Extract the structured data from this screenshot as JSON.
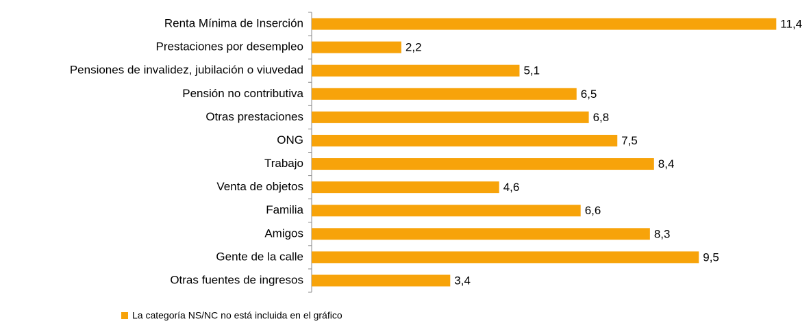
{
  "chart_data": {
    "type": "barh",
    "categories": [
      "Renta Mínima de Inserción",
      "Prestaciones por desempleo",
      "Pensiones de invalidez, jubilación o viuvedad",
      "Pensión no contributiva",
      "Otras prestaciones",
      "ONG",
      "Trabajo",
      "Venta de objetos",
      "Familia",
      "Amigos",
      "Gente de la calle",
      "Otras fuentes de ingresos"
    ],
    "values": [
      11.4,
      2.2,
      5.1,
      6.5,
      6.8,
      7.5,
      8.4,
      4.6,
      6.6,
      8.3,
      9.5,
      3.4
    ],
    "value_labels": [
      "11,4",
      "2,2",
      "5,1",
      "6,5",
      "6,8",
      "7,5",
      "8,4",
      "4,6",
      "6,6",
      "8,3",
      "9,5",
      "3,4"
    ],
    "color": "#f7a30a",
    "xlim": [
      0,
      12
    ],
    "note": "La categoría NS/NC no está incluida en el gráfico"
  }
}
